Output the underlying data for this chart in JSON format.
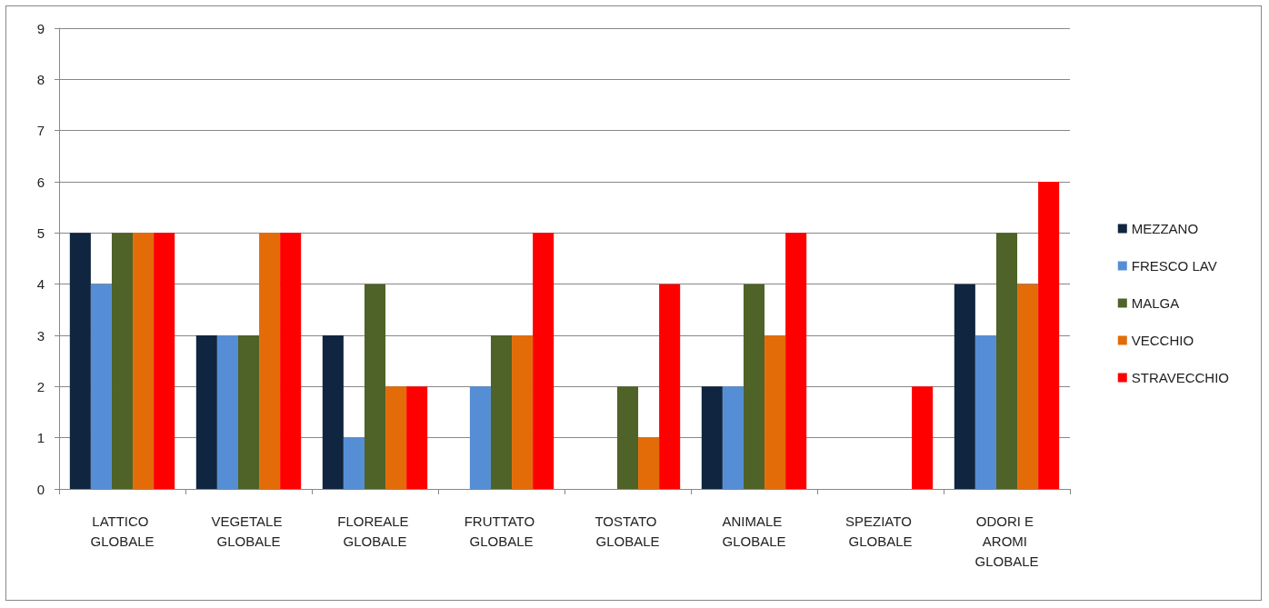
{
  "chart_data": {
    "type": "bar",
    "categories": [
      "LATTICO GLOBALE",
      "VEGETALE GLOBALE",
      "FLOREALE GLOBALE",
      "FRUTTATO GLOBALE",
      "TOSTATO GLOBALE",
      "ANIMALE GLOBALE",
      "SPEZIATO GLOBALE",
      "ODORI E AROMI GLOBALE"
    ],
    "series": [
      {
        "name": "MEZZANO",
        "color": "#10253f",
        "values": [
          5,
          3,
          3,
          0,
          0,
          2,
          0,
          4
        ]
      },
      {
        "name": "FRESCO LAV",
        "color": "#558ed5",
        "values": [
          4,
          3,
          1,
          2,
          0,
          2,
          0,
          3
        ]
      },
      {
        "name": "MALGA",
        "color": "#4f6228",
        "values": [
          5,
          3,
          4,
          3,
          2,
          4,
          0,
          5
        ]
      },
      {
        "name": "VECCHIO",
        "color": "#e36c09",
        "values": [
          5,
          5,
          2,
          3,
          1,
          3,
          0,
          4
        ]
      },
      {
        "name": "STRAVECCHIO",
        "color": "#ff0000",
        "values": [
          5,
          5,
          2,
          5,
          4,
          5,
          2,
          6
        ]
      }
    ],
    "ylim": [
      0,
      9
    ],
    "yticks": [
      0,
      1,
      2,
      3,
      4,
      5,
      6,
      7,
      8,
      9
    ],
    "grid": "y",
    "legend": "right"
  }
}
